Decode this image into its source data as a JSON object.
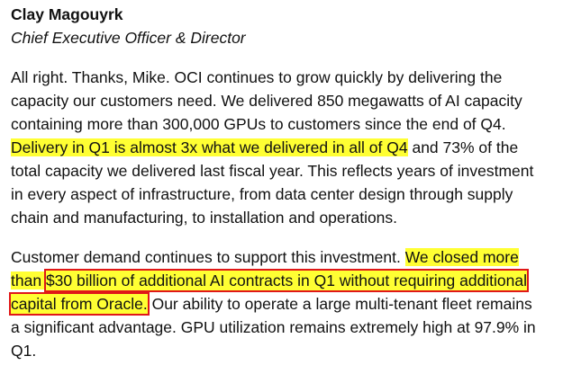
{
  "speaker": {
    "name": "Clay Magouyrk",
    "title": "Chief Executive Officer & Director"
  },
  "paragraphs": [
    {
      "lines": [
        [
          {
            "text": "All right. Thanks, Mike. OCI continues to grow quickly by delivering the"
          }
        ],
        [
          {
            "text": "capacity our customers need. We delivered 850 megawatts of AI capacity"
          }
        ],
        [
          {
            "text": "containing more than 300,000 GPUs to customers since the end of Q4."
          }
        ],
        [
          {
            "text": "Delivery in Q1 is almost 3x what we delivered in all of Q4",
            "mark": "highlight"
          },
          {
            "text": " and 73% of the"
          }
        ],
        [
          {
            "text": "total capacity we delivered last fiscal year. This reflects years of investment"
          }
        ],
        [
          {
            "text": "in every aspect of infrastructure, from data center design through supply"
          }
        ],
        [
          {
            "text": "chain and manufacturing, to installation and operations."
          }
        ]
      ]
    },
    {
      "lines": [
        [
          {
            "text": "Customer demand continues to support this investment. "
          },
          {
            "text": "We closed more",
            "mark": "highlight"
          }
        ],
        [
          {
            "text": "than ",
            "mark": "highlight"
          },
          {
            "text": "$30 billion of additional AI contracts in Q1 without requiring additional",
            "mark": "boxed"
          }
        ],
        [
          {
            "text": "capital from Oracle.",
            "mark": "boxed"
          },
          {
            "text": " Our ability to operate a large multi-tenant fleet remains"
          }
        ],
        [
          {
            "text": "a significant advantage. GPU utilization remains extremely high at 97.9% in"
          }
        ],
        [
          {
            "text": "Q1."
          }
        ]
      ]
    }
  ]
}
